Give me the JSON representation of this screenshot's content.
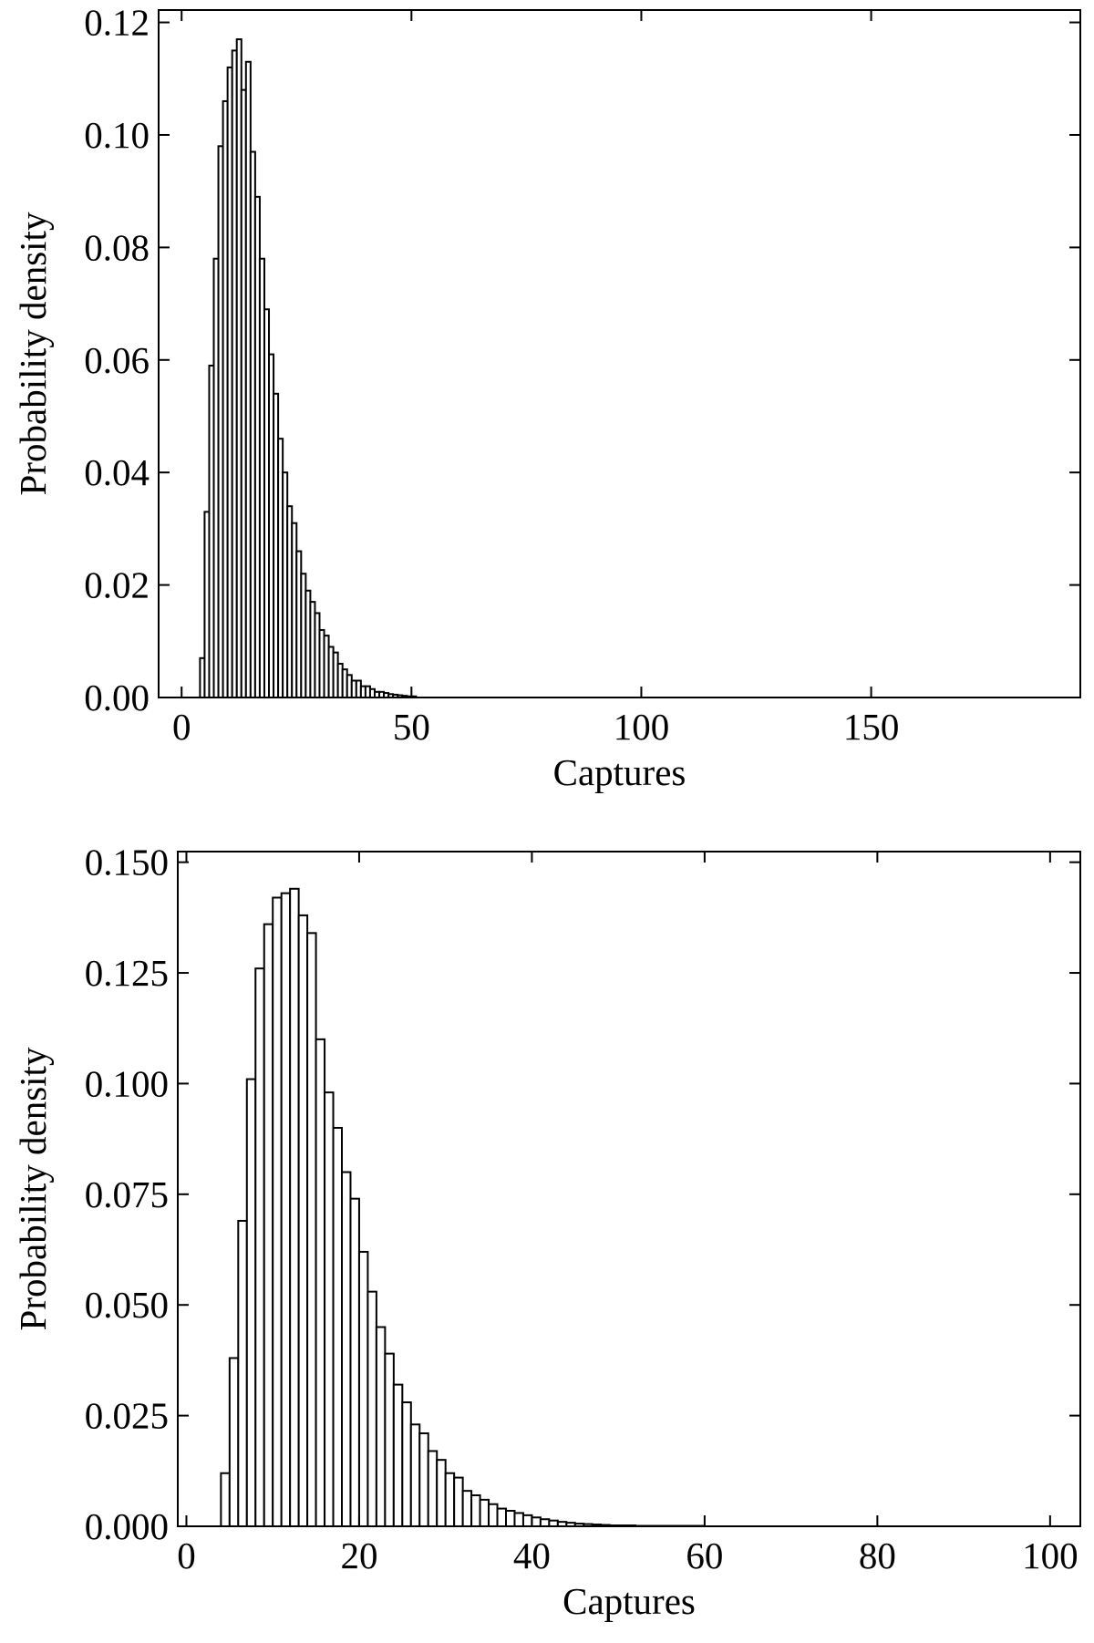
{
  "chart_data": [
    {
      "type": "histogram",
      "x_label": "Captures",
      "y_label": "Probability density",
      "bins": [
        4,
        5,
        6,
        7,
        8,
        9,
        10,
        11,
        12,
        13,
        14,
        15,
        16,
        17,
        18,
        19,
        20,
        21,
        22,
        23,
        24,
        25,
        26,
        27,
        28,
        29,
        30,
        31,
        32,
        33,
        34,
        35,
        36,
        37,
        38,
        39,
        40,
        41,
        42,
        43,
        44,
        45,
        46,
        47,
        48,
        49,
        50,
        51
      ],
      "counts": [
        0.007,
        0.033,
        0.059,
        0.078,
        0.098,
        0.106,
        0.112,
        0.115,
        0.117,
        0.108,
        0.113,
        0.097,
        0.089,
        0.078,
        0.069,
        0.061,
        0.054,
        0.046,
        0.04,
        0.034,
        0.031,
        0.026,
        0.022,
        0.019,
        0.017,
        0.015,
        0.012,
        0.011,
        0.009,
        0.008,
        0.006,
        0.005,
        0.004,
        0.003,
        0.003,
        0.002,
        0.002,
        0.0015,
        0.001,
        0.001,
        0.0008,
        0.0006,
        0.0005,
        0.0004,
        0.0003,
        0.0002,
        0.0002
      ],
      "color": "#ffffff",
      "edgecolor": "#000000",
      "xlim": [
        -5,
        195.5
      ],
      "ylim": [
        0,
        0.1222
      ],
      "xticks": [
        0,
        50,
        100,
        150
      ],
      "yticks": [
        {
          "value": 0,
          "label": "0.00"
        },
        {
          "value": 0.02,
          "label": "0.02"
        },
        {
          "value": 0.04,
          "label": "0.04"
        },
        {
          "value": 0.06,
          "label": "0.06"
        },
        {
          "value": 0.08,
          "label": "0.08"
        },
        {
          "value": 0.1,
          "label": "0.10"
        },
        {
          "value": 0.12,
          "label": "0.12"
        }
      ]
    },
    {
      "type": "histogram",
      "x_label": "Captures",
      "y_label": "Probability density",
      "bins": [
        4,
        5,
        6,
        7,
        8,
        9,
        10,
        11,
        12,
        13,
        14,
        15,
        16,
        17,
        18,
        19,
        20,
        21,
        22,
        23,
        24,
        25,
        26,
        27,
        28,
        29,
        30,
        31,
        32,
        33,
        34,
        35,
        36,
        37,
        38,
        39,
        40,
        41,
        42,
        43,
        44,
        45,
        46,
        47,
        48,
        49,
        50,
        51,
        52,
        53,
        54,
        55,
        56,
        57,
        58,
        59,
        60
      ],
      "counts": [
        0.012,
        0.038,
        0.069,
        0.101,
        0.126,
        0.136,
        0.142,
        0.143,
        0.144,
        0.138,
        0.134,
        0.11,
        0.098,
        0.09,
        0.08,
        0.074,
        0.062,
        0.053,
        0.045,
        0.039,
        0.032,
        0.028,
        0.023,
        0.021,
        0.017,
        0.015,
        0.012,
        0.011,
        0.008,
        0.007,
        0.006,
        0.005,
        0.004,
        0.0035,
        0.003,
        0.0025,
        0.002,
        0.0016,
        0.0013,
        0.001,
        0.0008,
        0.0006,
        0.0005,
        0.0004,
        0.0003,
        0.0002,
        0.0002,
        0.0002,
        0.0001,
        0.0001,
        0.0001,
        0.0001,
        0.0001,
        0.0001,
        0.0001,
        0.0001
      ],
      "color": "#ffffff",
      "edgecolor": "#000000",
      "xlim": [
        -1,
        103.5
      ],
      "ylim": [
        0,
        0.1524
      ],
      "xticks": [
        0,
        20,
        40,
        60,
        80,
        100
      ],
      "yticks": [
        {
          "value": 0,
          "label": "0.000"
        },
        {
          "value": 0.025,
          "label": "0.025"
        },
        {
          "value": 0.05,
          "label": "0.050"
        },
        {
          "value": 0.075,
          "label": "0.075"
        },
        {
          "value": 0.1,
          "label": "0.100"
        },
        {
          "value": 0.125,
          "label": "0.125"
        },
        {
          "value": 0.15,
          "label": "0.150"
        }
      ]
    }
  ]
}
